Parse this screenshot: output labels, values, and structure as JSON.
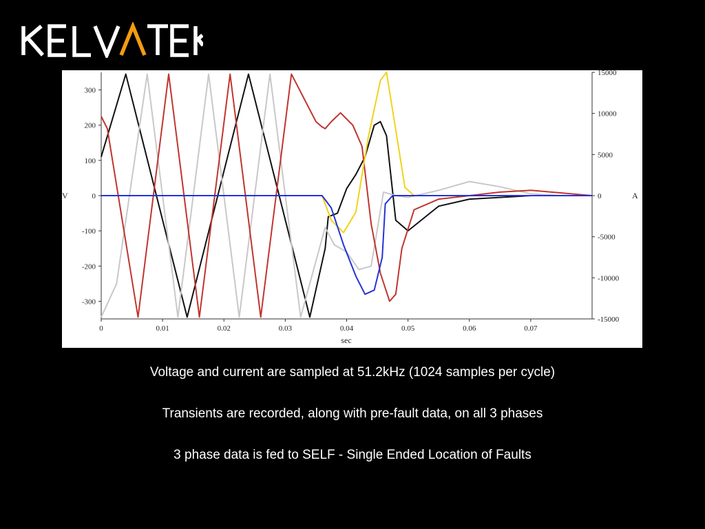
{
  "brand": {
    "name": "KELVATEK",
    "accent_color": "#F39C12",
    "text_color": "#FFFFFF"
  },
  "captions": [
    "Voltage and current are sampled at 51.2kHz (1024 samples per cycle)",
    "Transients are recorded, along with pre-fault data, on all 3 phases",
    "3 phase data is fed to SELF - Single Ended Location of Faults"
  ],
  "chart_data": {
    "type": "line",
    "title": "",
    "xlabel": "sec",
    "ylabel_left": "V",
    "ylabel_right": "A",
    "xlim": [
      0,
      0.08
    ],
    "ylim_left": [
      -350,
      350
    ],
    "ylim_right": [
      -15000,
      15000
    ],
    "xticks": [
      "0",
      "0.01",
      "0.02",
      "0.03",
      "0.04",
      "0.05",
      "0.06",
      "0.07"
    ],
    "yticks_left": [
      "300",
      "200",
      "100",
      "0",
      "-100",
      "-200",
      "-300"
    ],
    "yticks_right": [
      "15000",
      "10000",
      "5000",
      "0",
      "-5000",
      "-10000",
      "-15000"
    ],
    "grid": false,
    "legend": "none",
    "series": [
      {
        "color": "#111111",
        "axis": "left",
        "x": [
          0,
          0.004,
          0.009,
          0.014,
          0.019,
          0.024,
          0.029,
          0.034,
          0.0365,
          0.037,
          0.0385,
          0.04,
          0.0415,
          0.043,
          0.0445,
          0.0455,
          0.0465,
          0.048,
          0.05,
          0.055,
          0.06,
          0.07,
          0.08
        ],
        "y": [
          110,
          345,
          0,
          -345,
          0,
          345,
          0,
          -345,
          -150,
          -60,
          -50,
          20,
          60,
          110,
          200,
          210,
          170,
          -70,
          -100,
          -30,
          -10,
          0,
          0
        ]
      },
      {
        "color": "#C8C8C8",
        "axis": "left",
        "x": [
          0,
          0.0025,
          0.0075,
          0.0125,
          0.0175,
          0.0225,
          0.0275,
          0.0325,
          0.0365,
          0.038,
          0.04,
          0.042,
          0.044,
          0.046,
          0.048,
          0.05,
          0.055,
          0.06,
          0.065,
          0.07,
          0.075,
          0.08
        ],
        "y": [
          -345,
          -250,
          345,
          -345,
          345,
          -345,
          345,
          -345,
          -90,
          -140,
          -160,
          -210,
          -200,
          10,
          0,
          -5,
          15,
          40,
          25,
          5,
          0,
          0
        ]
      },
      {
        "color": "#C0342E",
        "axis": "left",
        "x": [
          0,
          0.001,
          0.006,
          0.011,
          0.016,
          0.021,
          0.026,
          0.031,
          0.035,
          0.036,
          0.0365,
          0.0375,
          0.039,
          0.041,
          0.0425,
          0.044,
          0.0455,
          0.047,
          0.048,
          0.049,
          0.051,
          0.055,
          0.06,
          0.065,
          0.07,
          0.08
        ],
        "y": [
          225,
          190,
          -345,
          345,
          -345,
          345,
          -345,
          345,
          210,
          195,
          190,
          210,
          235,
          200,
          140,
          -80,
          -220,
          -300,
          -280,
          -150,
          -40,
          -10,
          0,
          10,
          15,
          0
        ]
      },
      {
        "color": "#F2D21B",
        "axis": "right",
        "x": [
          0,
          0.036,
          0.0375,
          0.0395,
          0.0415,
          0.0435,
          0.0455,
          0.0465,
          0.048,
          0.0495,
          0.051,
          0.08
        ],
        "y": [
          0,
          0,
          -3000,
          -4500,
          -2000,
          7000,
          14000,
          15000,
          8000,
          1000,
          0,
          0
        ]
      },
      {
        "color": "#2333D6",
        "axis": "right",
        "x": [
          0,
          0.036,
          0.0375,
          0.0395,
          0.0415,
          0.043,
          0.0445,
          0.0458,
          0.0463,
          0.0475,
          0.08
        ],
        "y": [
          0,
          0,
          -1500,
          -6000,
          -9800,
          -12000,
          -11500,
          -7500,
          -1000,
          0,
          0
        ]
      }
    ]
  }
}
